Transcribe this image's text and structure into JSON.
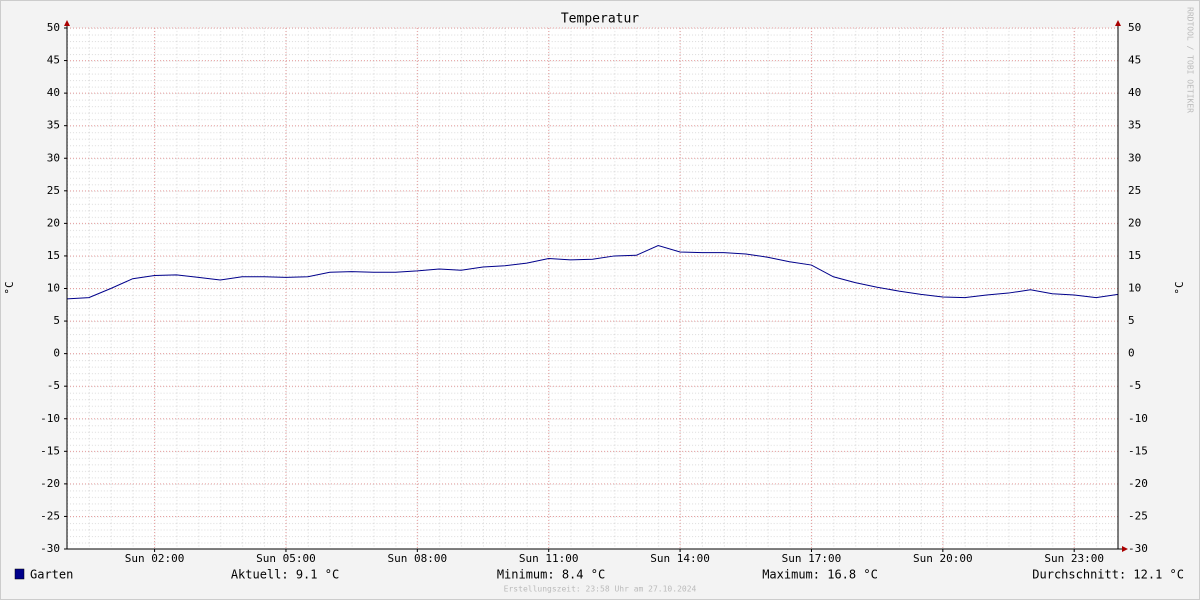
{
  "chart_data": {
    "type": "line",
    "title": "Temperatur",
    "y_label": "°C",
    "y2_label": "°C",
    "watermark": "RRDTOOL / TOBI OETIKER",
    "x": [
      0,
      0.5,
      1,
      1.5,
      2,
      2.5,
      3,
      3.5,
      4,
      4.5,
      5,
      5.5,
      6,
      6.5,
      7,
      7.5,
      8,
      8.5,
      9,
      9.5,
      10,
      10.5,
      11,
      11.5,
      12,
      12.5,
      13,
      13.5,
      14,
      14.5,
      15,
      15.5,
      16,
      16.5,
      17,
      17.5,
      18,
      18.5,
      19,
      19.5,
      20,
      20.5,
      21,
      21.5,
      22,
      22.5,
      23,
      23.5,
      24
    ],
    "series": [
      {
        "name": "Garten",
        "color": "#00008b",
        "values": [
          8.4,
          8.6,
          10.0,
          11.5,
          12.0,
          12.1,
          11.7,
          11.3,
          11.8,
          11.8,
          11.7,
          11.8,
          12.5,
          12.6,
          12.5,
          12.5,
          12.7,
          13.0,
          12.8,
          13.3,
          13.5,
          13.9,
          14.6,
          14.4,
          14.5,
          15.0,
          15.1,
          16.6,
          15.6,
          15.5,
          15.5,
          15.3,
          14.8,
          14.1,
          13.6,
          11.8,
          10.9,
          10.2,
          9.6,
          9.1,
          8.7,
          8.6,
          9.0,
          9.3,
          9.8,
          9.2,
          9.0,
          8.6,
          9.1
        ]
      }
    ],
    "xlim": [
      0,
      24
    ],
    "xticks": [
      {
        "value": 2,
        "label": "Sun 02:00"
      },
      {
        "value": 5,
        "label": "Sun 05:00"
      },
      {
        "value": 8,
        "label": "Sun 08:00"
      },
      {
        "value": 11,
        "label": "Sun 11:00"
      },
      {
        "value": 14,
        "label": "Sun 14:00"
      },
      {
        "value": 17,
        "label": "Sun 17:00"
      },
      {
        "value": 20,
        "label": "Sun 20:00"
      },
      {
        "value": 23,
        "label": "Sun 23:00"
      }
    ],
    "ylim": [
      -30,
      50
    ],
    "yticks": [
      -30,
      -25,
      -20,
      -15,
      -10,
      -5,
      0,
      5,
      10,
      15,
      20,
      25,
      30,
      35,
      40,
      45,
      50
    ],
    "grid": true,
    "stats": [
      "Aktuell: 9.1 °C",
      "Minimum: 8.4 °C",
      "Maximum: 16.8 °C",
      "Durchschnitt: 12.1 °C"
    ],
    "footer": "Erstellungszeit: 23:58 Uhr am 27.10.2024"
  }
}
